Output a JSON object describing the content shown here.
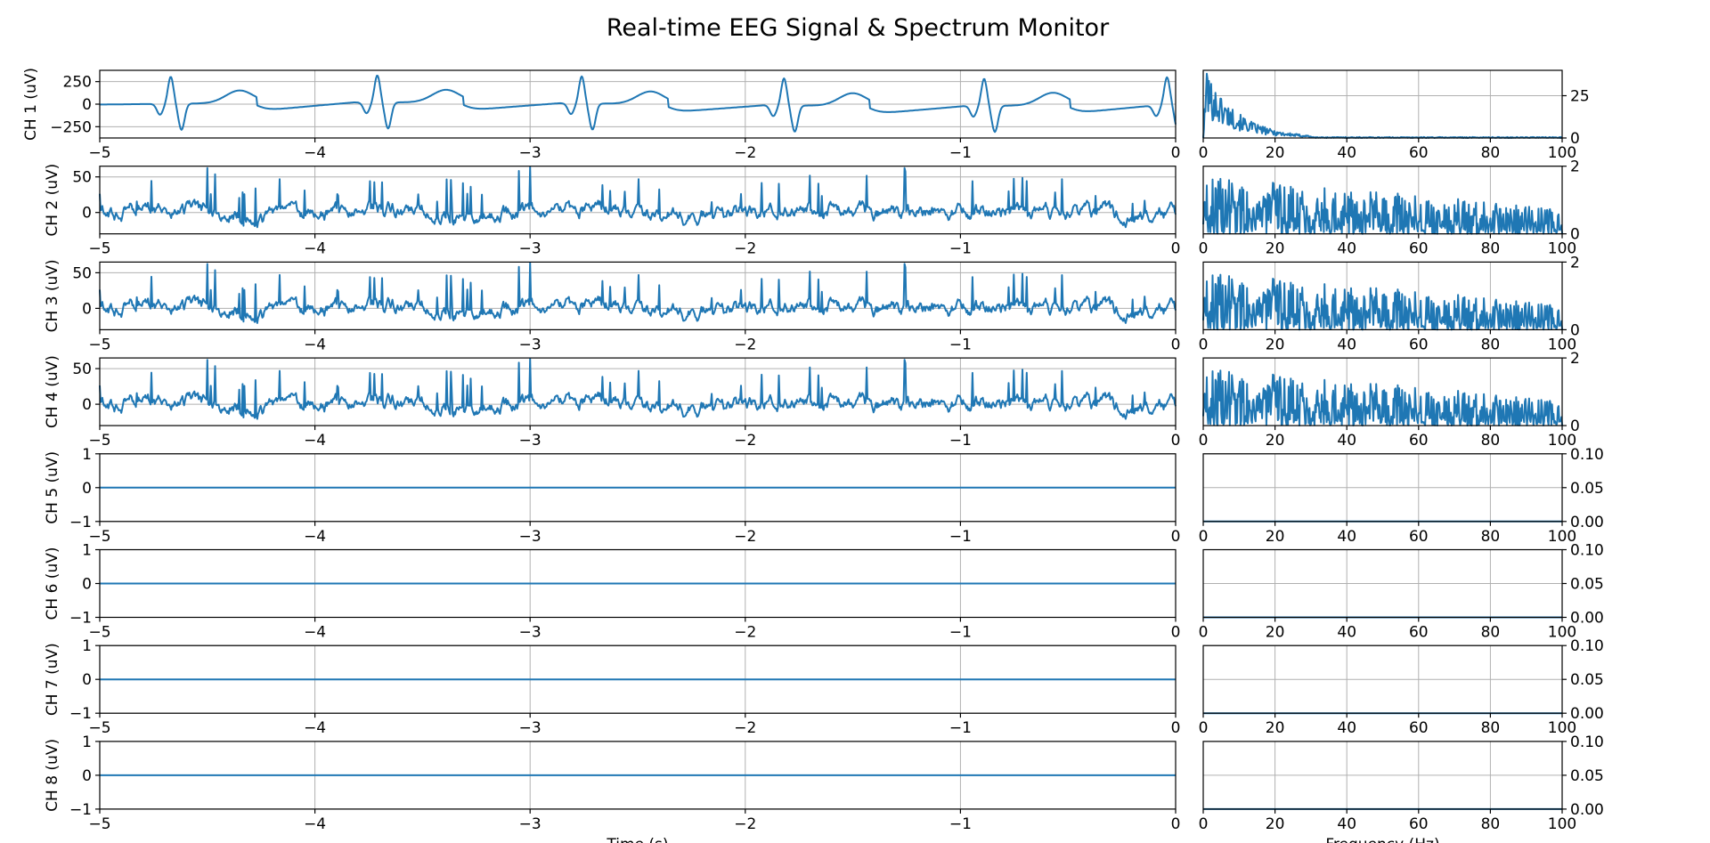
{
  "figure": {
    "title": "Real-time EEG Signal & Spectrum Monitor"
  },
  "colors": {
    "trace": "#1f77b4",
    "grid": "#b0b0b0",
    "axis": "#000000"
  },
  "chart_data": [
    {
      "type": "line",
      "panel": "time",
      "title": "",
      "xlabel": "Time (s)",
      "xlim": [
        -5,
        0
      ],
      "xticks": [
        -5,
        -4,
        -3,
        -2,
        -1,
        0
      ],
      "grid": true,
      "sample_rate_hz": 250,
      "channels": [
        {
          "ylabel": "CH 1 (uV)",
          "ylim": [
            -375,
            375
          ],
          "yticks": [
            -250,
            0,
            250
          ],
          "signal": "ecg-like",
          "peak_times": [
            -4.67,
            -3.71,
            -2.76,
            -1.82,
            -0.89,
            -0.04
          ],
          "peak_value": 300,
          "trough_value": -290,
          "baseline": [
            -50,
            50
          ]
        },
        {
          "ylabel": "CH 2 (uV)",
          "ylim": [
            -30,
            65
          ],
          "yticks": [
            0,
            50
          ],
          "signal": "noise",
          "range": [
            -20,
            60
          ]
        },
        {
          "ylabel": "CH 3 (uV)",
          "ylim": [
            -30,
            65
          ],
          "yticks": [
            0,
            50
          ],
          "signal": "noise",
          "range": [
            -20,
            60
          ]
        },
        {
          "ylabel": "CH 4 (uV)",
          "ylim": [
            -30,
            65
          ],
          "yticks": [
            0,
            50
          ],
          "signal": "noise",
          "range": [
            -20,
            60
          ]
        },
        {
          "ylabel": "CH 5 (uV)",
          "ylim": [
            -1,
            1
          ],
          "yticks": [
            -1,
            0,
            1
          ],
          "signal": "flat",
          "value": 0
        },
        {
          "ylabel": "CH 6 (uV)",
          "ylim": [
            -1,
            1
          ],
          "yticks": [
            -1,
            0,
            1
          ],
          "signal": "flat",
          "value": 0
        },
        {
          "ylabel": "CH 7 (uV)",
          "ylim": [
            -1,
            1
          ],
          "yticks": [
            -1,
            0,
            1
          ],
          "signal": "flat",
          "value": 0
        },
        {
          "ylabel": "CH 8 (uV)",
          "ylim": [
            -1,
            1
          ],
          "yticks": [
            -1,
            0,
            1
          ],
          "signal": "flat",
          "value": 0
        }
      ]
    },
    {
      "type": "line",
      "panel": "spectrum",
      "title": "",
      "xlabel": "Frequency (Hz)",
      "xlim": [
        0,
        100
      ],
      "xticks": [
        0,
        20,
        40,
        60,
        80,
        100
      ],
      "grid": true,
      "y_axis_side": "right",
      "channels": [
        {
          "ylim": [
            0,
            40
          ],
          "yticks": [
            0,
            25
          ],
          "yticklabels": [
            "0",
            "25"
          ],
          "spectrum": "decay",
          "peak": 38,
          "cutoff_hz": 30
        },
        {
          "ylim": [
            0,
            2
          ],
          "yticks": [
            0,
            2
          ],
          "yticklabels": [
            "0",
            "2"
          ],
          "spectrum": "noise",
          "range": [
            0,
            1.7
          ]
        },
        {
          "ylim": [
            0,
            2
          ],
          "yticks": [
            0,
            2
          ],
          "yticklabels": [
            "0",
            "2"
          ],
          "spectrum": "noise",
          "range": [
            0,
            1.7
          ]
        },
        {
          "ylim": [
            0,
            2
          ],
          "yticks": [
            0,
            2
          ],
          "yticklabels": [
            "0",
            "2"
          ],
          "spectrum": "noise",
          "range": [
            0,
            1.7
          ]
        },
        {
          "ylim": [
            0,
            0.1
          ],
          "yticks": [
            0,
            0.05,
            0.1
          ],
          "yticklabels": [
            "0.00",
            "0.05",
            "0.10"
          ],
          "spectrum": "flat",
          "value": 0
        },
        {
          "ylim": [
            0,
            0.1
          ],
          "yticks": [
            0,
            0.05,
            0.1
          ],
          "yticklabels": [
            "0.00",
            "0.05",
            "0.10"
          ],
          "spectrum": "flat",
          "value": 0
        },
        {
          "ylim": [
            0,
            0.1
          ],
          "yticks": [
            0,
            0.05,
            0.1
          ],
          "yticklabels": [
            "0.00",
            "0.05",
            "0.10"
          ],
          "spectrum": "flat",
          "value": 0
        },
        {
          "ylim": [
            0,
            0.1
          ],
          "yticks": [
            0,
            0.05,
            0.1
          ],
          "yticklabels": [
            "0.00",
            "0.05",
            "0.10"
          ],
          "spectrum": "flat",
          "value": 0
        }
      ]
    }
  ]
}
